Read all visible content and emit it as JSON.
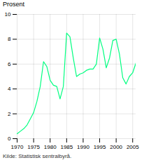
{
  "chart_data": {
    "type": "line",
    "ylabel": "Prosent",
    "source": "Kilde: Statistisk sentralbyrå.",
    "x": [
      1970,
      1971,
      1972,
      1973,
      1974,
      1975,
      1976,
      1977,
      1978,
      1979,
      1980,
      1981,
      1982,
      1983,
      1984,
      1985,
      1986,
      1987,
      1988,
      1989,
      1990,
      1991,
      1992,
      1993,
      1994,
      1995,
      1996,
      1997,
      1998,
      1999,
      2000,
      2001,
      2002,
      2003,
      2004,
      2005,
      2006
    ],
    "values": [
      0.4,
      0.6,
      0.8,
      1.1,
      1.6,
      2.1,
      3.0,
      4.2,
      6.2,
      5.8,
      4.7,
      4.3,
      4.2,
      3.2,
      4.2,
      8.5,
      8.2,
      6.5,
      5.0,
      5.2,
      5.3,
      5.5,
      5.6,
      5.6,
      6.0,
      8.1,
      7.2,
      5.7,
      6.5,
      7.9,
      8.0,
      6.8,
      4.9,
      4.4,
      5.0,
      5.3,
      6.1
    ],
    "color": "#00FF80",
    "xlim": [
      1970,
      2006
    ],
    "xticks": [
      1970,
      1975,
      1980,
      1985,
      1990,
      1995,
      2000,
      2005
    ],
    "ylim": [
      0,
      10
    ],
    "yticks": [
      0,
      2,
      4,
      6,
      8,
      10
    ],
    "grid": true
  }
}
